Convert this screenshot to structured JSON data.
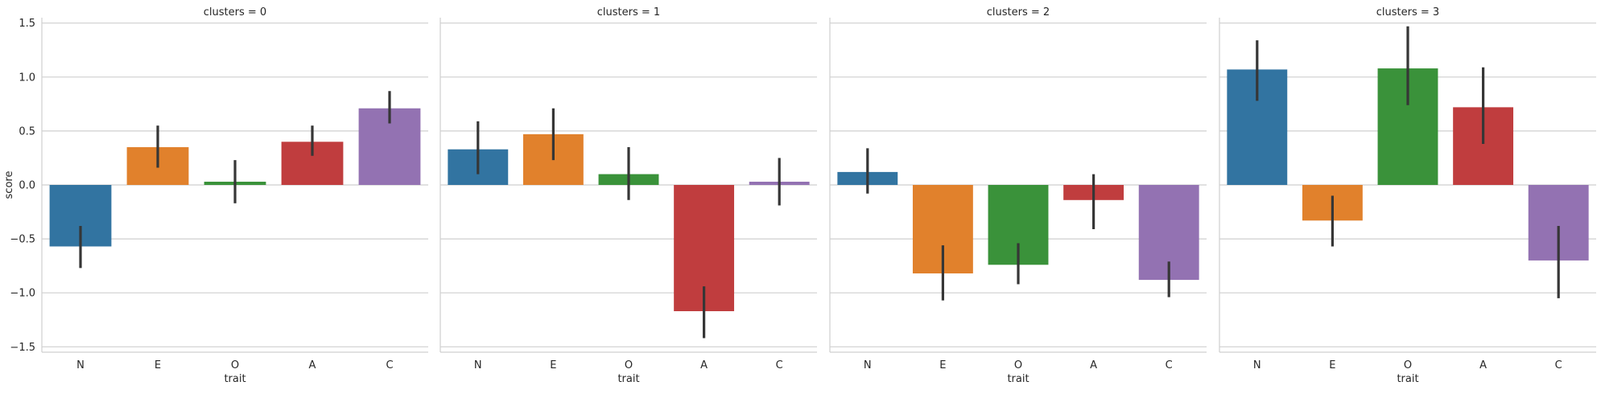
{
  "chart_data": {
    "type": "bar",
    "facet_variable": "clusters",
    "xlabel": "trait",
    "ylabel": "score",
    "ylim": [
      -1.55,
      1.55
    ],
    "yticks": [
      -1.5,
      -1.0,
      -0.5,
      0.0,
      0.5,
      1.0,
      1.5
    ],
    "ytick_labels": [
      "−1.5",
      "−1.0",
      "−0.5",
      "0.0",
      "0.5",
      "1.0",
      "1.5"
    ],
    "grid": true,
    "categories": [
      "N",
      "E",
      "O",
      "A",
      "C"
    ],
    "colors": [
      "#3274a1",
      "#e1812c",
      "#3a923a",
      "#c03d3e",
      "#9372b2"
    ],
    "errorbar_color": "#363636",
    "panels": [
      {
        "title": "clusters = 0",
        "values": [
          -0.57,
          0.35,
          0.03,
          0.4,
          0.71
        ],
        "err_low": [
          -0.77,
          0.16,
          -0.17,
          0.27,
          0.57
        ],
        "err_high": [
          -0.38,
          0.55,
          0.23,
          0.55,
          0.87
        ]
      },
      {
        "title": "clusters = 1",
        "values": [
          0.33,
          0.47,
          0.1,
          -1.17,
          0.03
        ],
        "err_low": [
          0.1,
          0.23,
          -0.14,
          -1.42,
          -0.19
        ],
        "err_high": [
          0.59,
          0.71,
          0.35,
          -0.94,
          0.25
        ]
      },
      {
        "title": "clusters = 2",
        "values": [
          0.12,
          -0.82,
          -0.74,
          -0.14,
          -0.88
        ],
        "err_low": [
          -0.08,
          -1.07,
          -0.92,
          -0.41,
          -1.04
        ],
        "err_high": [
          0.34,
          -0.56,
          -0.54,
          0.1,
          -0.71
        ]
      },
      {
        "title": "clusters = 3",
        "values": [
          1.07,
          -0.33,
          1.08,
          0.72,
          -0.7
        ],
        "err_low": [
          0.78,
          -0.57,
          0.74,
          0.38,
          -1.05
        ],
        "err_high": [
          1.34,
          -0.1,
          1.47,
          1.09,
          -0.38
        ]
      }
    ]
  }
}
